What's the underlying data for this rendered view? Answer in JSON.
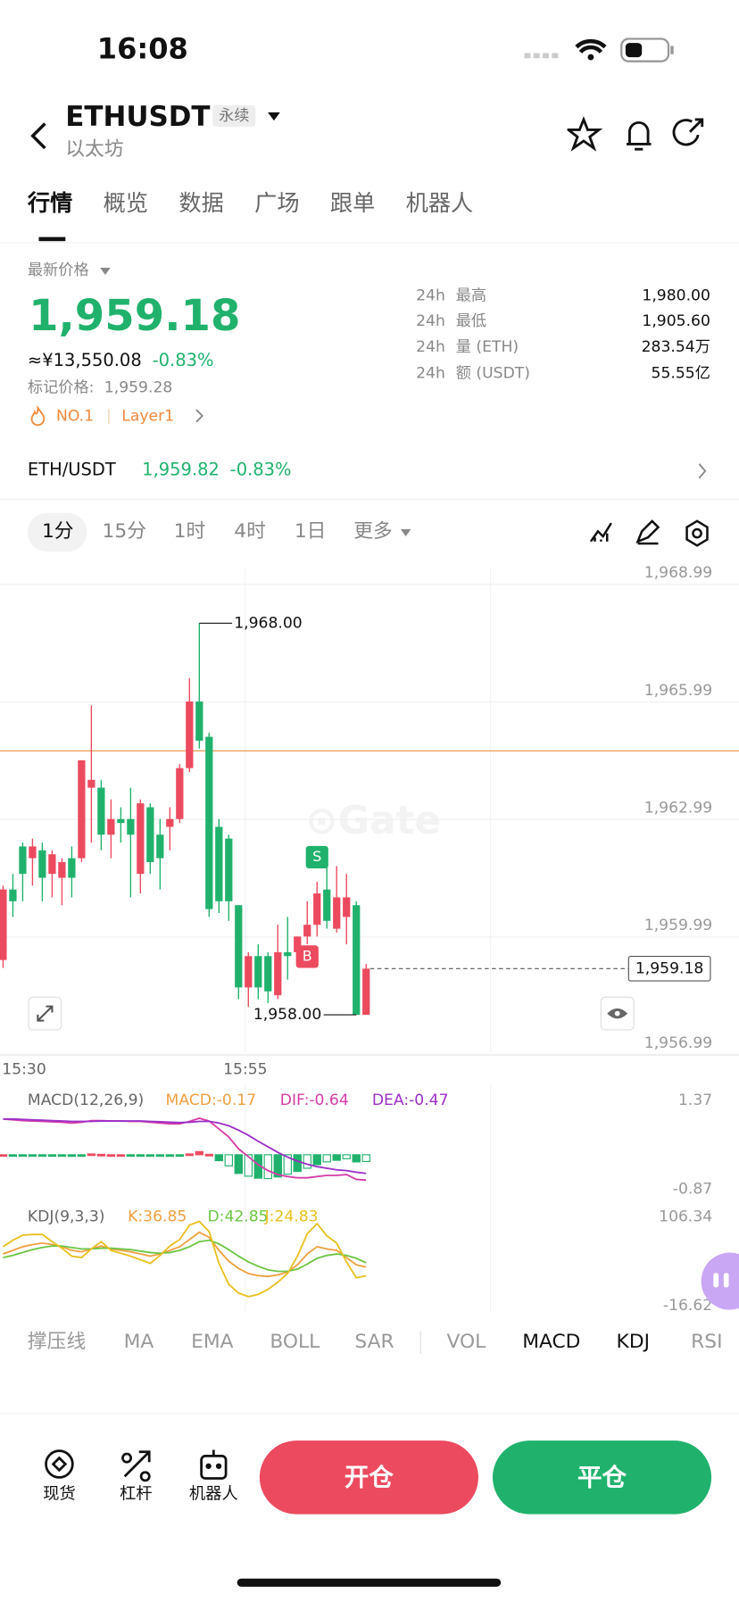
{
  "status_bar": {
    "time": "16:08"
  },
  "header": {
    "symbol": "ETHUSDT",
    "tag": "永续",
    "name": "以太坊"
  },
  "tabs": [
    "行情",
    "概览",
    "数据",
    "广场",
    "跟单",
    "机器人"
  ],
  "price": {
    "label": "最新价格",
    "last": "1,959.18",
    "cny": "≈¥13,550.08",
    "change": "-0.83%",
    "mark_label": "标记价格:",
    "mark": "1,959.28",
    "tags": [
      "NO.1",
      "Layer1"
    ]
  },
  "stats": [
    {
      "period": "24h",
      "label": "最高",
      "value": "1,980.00"
    },
    {
      "period": "24h",
      "label": "最低",
      "value": "1,905.60"
    },
    {
      "period": "24h",
      "label": "量 (ETH)",
      "value": "283.54万"
    },
    {
      "period": "24h",
      "label": "额 (USDT)",
      "value": "55.55亿"
    }
  ],
  "pair": {
    "name": "ETH/USDT",
    "price": "1,959.82",
    "change": "-0.83%"
  },
  "intervals": [
    "1分",
    "15分",
    "1时",
    "4时",
    "1日",
    "更多"
  ],
  "chart_data": [
    {
      "type": "candlestick",
      "categories": [
        "15:30",
        null,
        null,
        null,
        null,
        null,
        null,
        null,
        null,
        null,
        null,
        null,
        null,
        null,
        null,
        null,
        null,
        null,
        null,
        null,
        null,
        null,
        null,
        null,
        null,
        "15:55",
        null,
        null,
        null,
        null,
        null,
        null,
        null,
        null,
        null,
        null,
        null,
        null
      ],
      "open": [
        1959.4,
        1961.2,
        1962.3,
        1962.0,
        1962.2,
        1961.6,
        1961.5,
        1962.0,
        1962.0,
        1963.8,
        1963.8,
        1962.6,
        1963.0,
        1963.0,
        1961.6,
        1963.3,
        1962.6,
        1962.8,
        1963.0,
        1964.3,
        1966.0,
        1965.1,
        1962.8,
        1962.5,
        1960.8,
        1958.7,
        1959.5,
        1959.5,
        1958.5,
        1959.6,
        1959.6,
        1960.0,
        1960.3,
        1961.2,
        1960.2,
        1960.5,
        1960.8,
        1958.0
      ],
      "high": [
        1961.3,
        1961.6,
        1962.4,
        1962.5,
        1962.4,
        1962.2,
        1962.0,
        1962.3,
        1964.5,
        1965.9,
        1964.0,
        1963.5,
        1963.3,
        1963.8,
        1963.5,
        1963.4,
        1963.0,
        1963.3,
        1964.4,
        1966.6,
        1968.0,
        1965.2,
        1963.0,
        1962.6,
        1960.8,
        1959.6,
        1959.8,
        1959.6,
        1960.3,
        1960.5,
        1960.0,
        1960.9,
        1961.4,
        1962.1,
        1961.8,
        1961.6,
        1960.9,
        1959.3
      ],
      "low": [
        1959.2,
        1960.5,
        1960.9,
        1961.3,
        1960.9,
        1961.0,
        1960.8,
        1961.0,
        1961.9,
        1962.4,
        1962.2,
        1962.0,
        1962.4,
        1961.0,
        1961.1,
        1961.6,
        1961.2,
        1962.2,
        1962.9,
        1964.2,
        1964.8,
        1960.5,
        1960.6,
        1960.4,
        1958.4,
        1958.2,
        1958.4,
        1958.3,
        1958.4,
        1958.9,
        1959.3,
        1959.8,
        1960.0,
        1960.2,
        1960.1,
        1959.8,
        1958.0,
        1958.0
      ],
      "close": [
        1961.2,
        1960.9,
        1961.6,
        1962.3,
        1961.5,
        1962.1,
        1961.9,
        1961.5,
        1964.5,
        1964.0,
        1962.6,
        1963.0,
        1962.9,
        1962.6,
        1963.4,
        1961.9,
        1962.0,
        1963.0,
        1964.3,
        1966.0,
        1965.0,
        1960.7,
        1960.9,
        1960.9,
        1958.7,
        1959.5,
        1958.7,
        1958.6,
        1959.6,
        1959.5,
        1960.0,
        1960.3,
        1961.1,
        1960.4,
        1961.0,
        1961.0,
        1958.0,
        1959.18
      ],
      "colors": {
        "up": "#ec4a5f",
        "down": "#20b26c"
      },
      "ylim": [
        1956.99,
        1968.99
      ],
      "yticks": [
        {
          "value": 1968.99,
          "label": "1,968.99"
        },
        {
          "value": 1965.99,
          "label": "1,965.99"
        },
        {
          "value": 1962.99,
          "label": "1,962.99"
        },
        {
          "value": 1959.99,
          "label": "1,959.99"
        },
        {
          "value": 1956.99,
          "label": "1,956.99"
        }
      ],
      "high_label": "1,968.00",
      "low_label": "1,958.00",
      "last_label": "1,959.18",
      "ma_line": 1964.74,
      "ma_color": "#f0a460",
      "markers": [
        {
          "label": "S",
          "index": 32,
          "color": "#20b26c"
        },
        {
          "label": "B",
          "index": 31,
          "color": "#ec4a5f"
        }
      ]
    },
    {
      "type": "macd",
      "title": "MACD(12,26,9)",
      "ylim": [
        -0.87,
        1.37
      ],
      "yticks": [
        1.37,
        -0.87
      ],
      "series": [
        {
          "name": "MACD:-0.17",
          "color": "#f0a040",
          "values": [
            0,
            -0.02,
            -0.03,
            -0.03,
            -0.03,
            -0.03,
            -0.03,
            -0.04,
            -0.02,
            0.02,
            0.01,
            0,
            0,
            -0.01,
            -0.01,
            -0.02,
            -0.03,
            -0.04,
            -0.03,
            0.02,
            0.08,
            0.01,
            -0.15,
            -0.28,
            -0.47,
            -0.54,
            -0.59,
            -0.6,
            -0.56,
            -0.49,
            -0.42,
            -0.34,
            -0.25,
            -0.18,
            -0.14,
            -0.1,
            -0.18,
            -0.17
          ]
        },
        {
          "name": "DIF:-0.64",
          "color": "#d63ca8",
          "values": [
            0.9,
            0.88,
            0.86,
            0.85,
            0.84,
            0.83,
            0.82,
            0.8,
            0.82,
            0.86,
            0.86,
            0.85,
            0.85,
            0.84,
            0.84,
            0.82,
            0.8,
            0.78,
            0.78,
            0.84,
            0.92,
            0.85,
            0.65,
            0.45,
            0.15,
            -0.05,
            -0.25,
            -0.4,
            -0.5,
            -0.55,
            -0.58,
            -0.58,
            -0.55,
            -0.52,
            -0.52,
            -0.5,
            -0.62,
            -0.64
          ]
        },
        {
          "name": "DEA:-0.47",
          "color": "#9c2fc8",
          "values": [
            0.9,
            0.9,
            0.89,
            0.88,
            0.87,
            0.86,
            0.85,
            0.84,
            0.84,
            0.84,
            0.85,
            0.85,
            0.85,
            0.85,
            0.85,
            0.84,
            0.83,
            0.82,
            0.81,
            0.82,
            0.84,
            0.84,
            0.8,
            0.73,
            0.62,
            0.49,
            0.34,
            0.2,
            0.06,
            -0.06,
            -0.16,
            -0.24,
            -0.3,
            -0.34,
            -0.38,
            -0.4,
            -0.44,
            -0.47
          ]
        }
      ]
    },
    {
      "type": "line",
      "title": "KDJ(9,3,3)",
      "ylim": [
        -16.62,
        106.34
      ],
      "yticks": [
        106.34,
        -16.62
      ],
      "series": [
        {
          "name": "K:36.85",
          "color": "#f0a040",
          "values": [
            55,
            60,
            65,
            68,
            70,
            68,
            65,
            60,
            58,
            62,
            66,
            62,
            60,
            58,
            55,
            52,
            55,
            60,
            65,
            75,
            85,
            78,
            60,
            45,
            35,
            28,
            25,
            24,
            26,
            30,
            40,
            55,
            65,
            62,
            60,
            50,
            40,
            36.85
          ]
        },
        {
          "name": "D:42.85",
          "color": "#6cc644",
          "values": [
            50,
            53,
            57,
            61,
            64,
            66,
            66,
            64,
            62,
            62,
            63,
            63,
            62,
            61,
            59,
            57,
            56,
            57,
            60,
            65,
            72,
            74,
            69,
            61,
            52,
            44,
            38,
            33,
            31,
            31,
            34,
            41,
            49,
            53,
            55,
            53,
            49,
            42.85
          ]
        },
        {
          "name": "J:24.83",
          "color": "#e8c020",
          "values": [
            65,
            74,
            81,
            82,
            82,
            72,
            63,
            52,
            50,
            62,
            72,
            60,
            56,
            52,
            47,
            42,
            53,
            66,
            75,
            95,
            100,
            86,
            42,
            13,
            1,
            -4,
            -1,
            6,
            16,
            28,
            52,
            83,
            97,
            80,
            70,
            44,
            22,
            24.83
          ]
        }
      ]
    }
  ],
  "indicators": [
    "撑压线",
    "MA",
    "EMA",
    "BOLL",
    "SAR",
    "VOL",
    "MACD",
    "KDJ",
    "RSI"
  ],
  "bottom": {
    "actions": [
      "现货",
      "杠杆",
      "机器人"
    ],
    "open": "开仓",
    "close": "平仓"
  }
}
